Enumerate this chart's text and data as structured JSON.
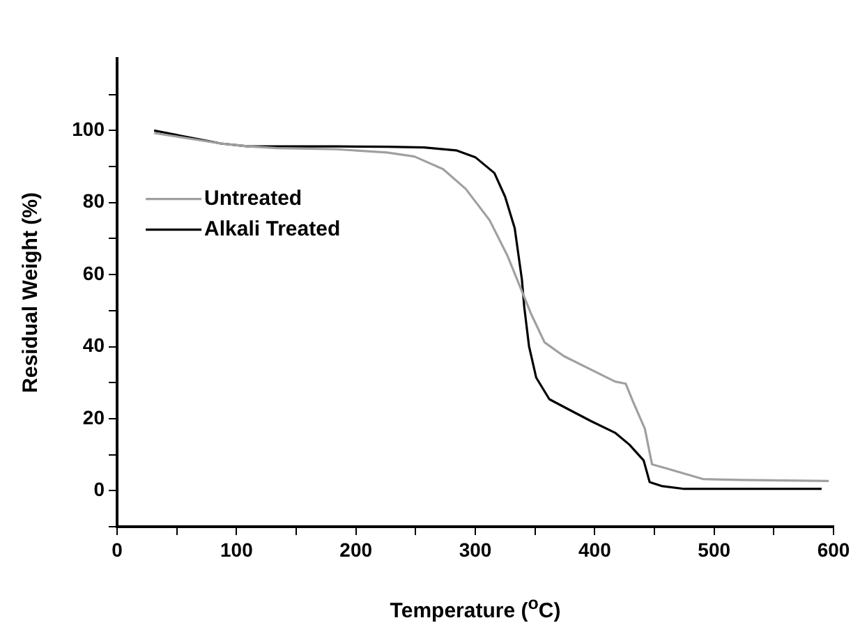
{
  "chart_data": {
    "type": "line",
    "xlabel": "Temperature ($^{o}$C)",
    "ylabel": "Residual Weight (%)",
    "xlim": [
      0,
      600
    ],
    "ylim": [
      -10,
      120
    ],
    "xticks": [
      0,
      {
        "value": 50,
        "label": null
      },
      100,
      {
        "value": 150,
        "label": null
      },
      200,
      {
        "value": 250,
        "label": null
      },
      300,
      {
        "value": 350,
        "label": null
      },
      400,
      {
        "value": 450,
        "label": null
      },
      500,
      {
        "value": 550,
        "label": null
      },
      600
    ],
    "yticks": [
      {
        "value": -10,
        "label": null
      },
      0,
      {
        "value": 10,
        "label": null
      },
      20,
      {
        "value": 30,
        "label": null
      },
      40,
      {
        "value": 50,
        "label": null
      },
      60,
      {
        "value": 70,
        "label": null
      },
      80,
      {
        "value": 90,
        "label": null
      },
      100,
      {
        "value": 110,
        "label": null
      }
    ],
    "grid": false,
    "legend": "top left",
    "marker": "none",
    "line_style": "solid",
    "series": [
      {
        "name": "Untreated",
        "color": "#a0a0a0",
        "x": [
          31,
          87,
          110,
          134,
          184,
          226,
          249,
          273,
          292,
          312,
          327,
          339,
          347,
          358,
          374,
          397,
          417,
          426,
          432,
          442,
          448,
          460,
          491,
          522,
          596
        ],
        "values": [
          99.3,
          96.4,
          95.6,
          95.1,
          94.8,
          93.9,
          92.8,
          89.3,
          83.8,
          75.1,
          65.2,
          55.4,
          48.9,
          41.2,
          37.4,
          33.6,
          30.3,
          29.7,
          24.8,
          17.2,
          7.3,
          6.2,
          3.2,
          3,
          2.7
        ]
      },
      {
        "name": "Alkali Treated",
        "color": "#000000",
        "x": [
          31,
          87,
          110,
          184,
          226,
          257,
          284,
          300,
          316,
          325,
          333,
          339,
          341,
          345,
          351,
          362,
          378,
          397,
          417,
          429,
          441,
          446,
          456,
          475,
          590
        ],
        "values": [
          100,
          96.4,
          95.6,
          95.6,
          95.5,
          95.3,
          94.5,
          92.6,
          88.2,
          81.6,
          72.9,
          58.7,
          51,
          40.1,
          31.4,
          25.4,
          22.6,
          19.3,
          16.1,
          12.8,
          8.4,
          2.4,
          1.3,
          0.5,
          0.5
        ]
      }
    ]
  }
}
